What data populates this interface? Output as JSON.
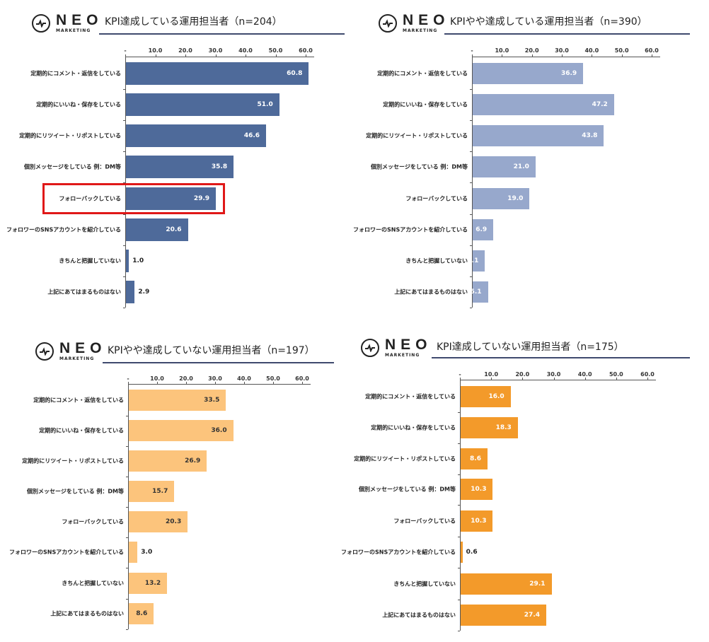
{
  "logo": {
    "name": "NEO",
    "sub": "MARKETING"
  },
  "chart_data": [
    {
      "type": "bar",
      "orientation": "horizontal",
      "title": "KPI達成している運用担当者（n=204）",
      "color": "#4e6a9a",
      "value_color": "#ffffff",
      "xlim": [
        0,
        60
      ],
      "ticks": [
        "-",
        "10.0",
        "20.0",
        "30.0",
        "40.0",
        "50.0",
        "60.0"
      ],
      "categories": [
        "定期的にコメント・返信をしている",
        "定期的にいいね・保存をしている",
        "定期的にリツイート・リポストしている",
        "個別メッセージをしている 例：DM等",
        "フォローバックしている",
        "フォロワーのSNSアカウントを紹介している",
        "きちんと把握していない",
        "上記にあてはまるものはない"
      ],
      "values": [
        60.8,
        51.0,
        46.6,
        35.8,
        29.9,
        20.6,
        1.0,
        2.9
      ],
      "value_labels": [
        "60.8",
        "51.0",
        "46.6",
        "35.8",
        "29.9",
        "20.6",
        "1.0",
        "2.9"
      ],
      "highlighted_category": "フォローバックしている"
    },
    {
      "type": "bar",
      "orientation": "horizontal",
      "title": "KPIやや達成している運用担当者（n=390）",
      "color": "#97a8cc",
      "value_color": "#ffffff",
      "xlim": [
        0,
        60
      ],
      "ticks": [
        "-",
        "10.0",
        "20.0",
        "30.0",
        "40.0",
        "50.0",
        "60.0"
      ],
      "categories": [
        "定期的にコメント・返信をしている",
        "定期的にいいね・保存をしている",
        "定期的にリツイート・リポストしている",
        "個別メッセージをしている 例：DM等",
        "フォローバックしている",
        "フォロワーのSNSアカウントを紹介している",
        "きちんと把握していない",
        "上記にあてはまるものはない"
      ],
      "values": [
        36.9,
        47.2,
        43.8,
        21.0,
        19.0,
        6.9,
        4.1,
        5.1
      ],
      "value_labels": [
        "36.9",
        "47.2",
        "43.8",
        "21.0",
        "19.0",
        "6.9",
        "4.1",
        "5.1"
      ]
    },
    {
      "type": "bar",
      "orientation": "horizontal",
      "title": "KPIやや達成していない運用担当者（n=197）",
      "color": "#fcc47c",
      "value_color": "#333333",
      "xlim": [
        0,
        60
      ],
      "ticks": [
        "-",
        "10.0",
        "20.0",
        "30.0",
        "40.0",
        "50.0",
        "60.0"
      ],
      "categories": [
        "定期的にコメント・返信をしている",
        "定期的にいいね・保存をしている",
        "定期的にリツイート・リポストしている",
        "個別メッセージをしている 例：DM等",
        "フォローバックしている",
        "フォロワーのSNSアカウントを紹介している",
        "きちんと把握していない",
        "上記にあてはまるものはない"
      ],
      "values": [
        33.5,
        36.0,
        26.9,
        15.7,
        20.3,
        3.0,
        13.2,
        8.6
      ],
      "value_labels": [
        "33.5",
        "36.0",
        "26.9",
        "15.7",
        "20.3",
        "3.0",
        "13.2",
        "8.6"
      ]
    },
    {
      "type": "bar",
      "orientation": "horizontal",
      "title": "KPI達成していない運用担当者（n=175）",
      "color": "#f39a2a",
      "value_color": "#ffffff",
      "xlim": [
        0,
        60
      ],
      "ticks": [
        "-",
        "10.0",
        "20.0",
        "30.0",
        "40.0",
        "50.0",
        "60.0"
      ],
      "categories": [
        "定期的にコメント・返信をしている",
        "定期的にいいね・保存をしている",
        "定期的にリツイート・リポストしている",
        "個別メッセージをしている 例：DM等",
        "フォローバックしている",
        "フォロワーのSNSアカウントを紹介している",
        "きちんと把握していない",
        "上記にあてはまるものはない"
      ],
      "values": [
        16.0,
        18.3,
        8.6,
        10.3,
        10.3,
        0.6,
        29.1,
        27.4
      ],
      "value_labels": [
        "16.0",
        "18.3",
        "8.6",
        "10.3",
        "10.3",
        "0.6",
        "29.1",
        "27.4"
      ]
    }
  ]
}
